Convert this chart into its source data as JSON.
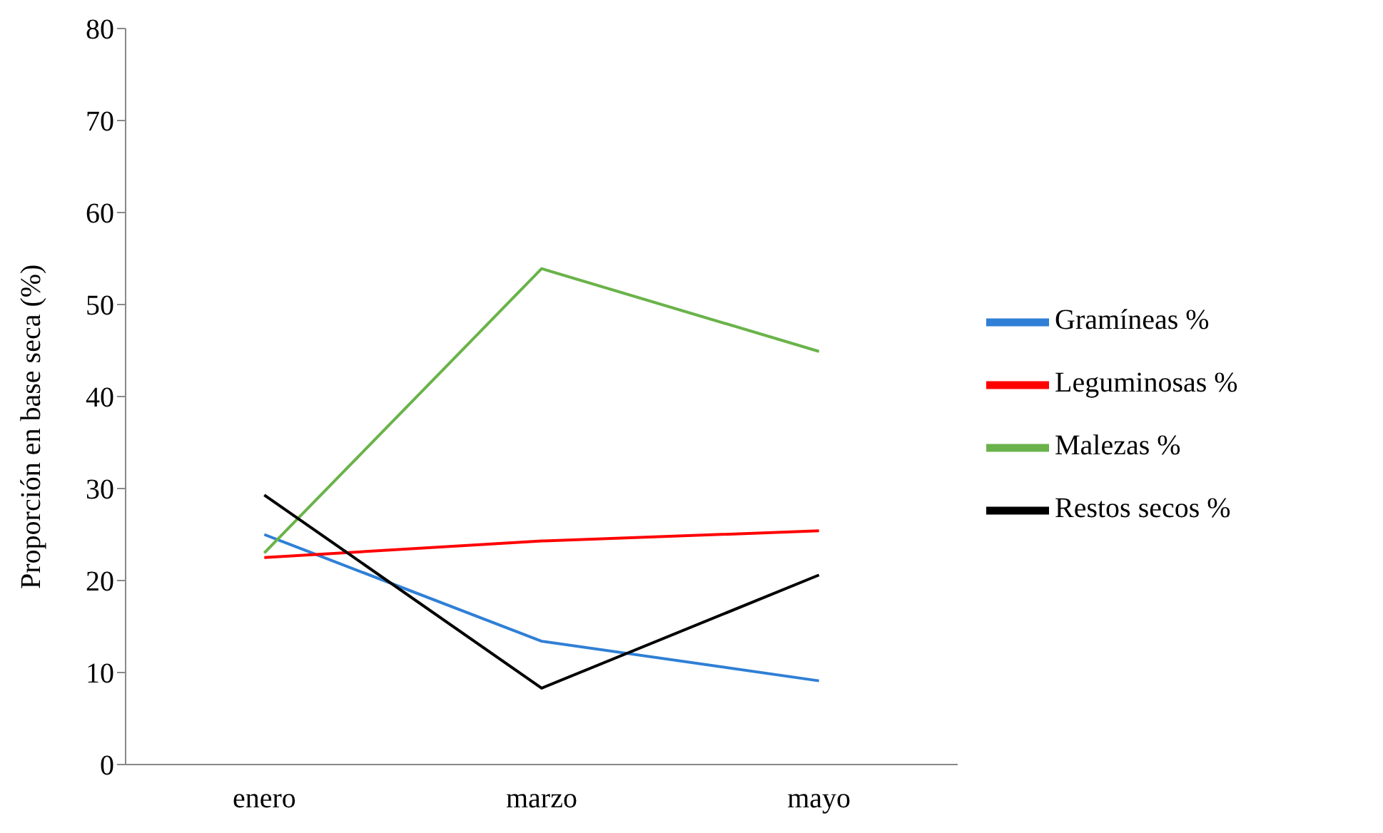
{
  "chart_data": {
    "type": "line",
    "ylabel": "Proporción en base seca (%)",
    "categories": [
      "enero",
      "marzo",
      "mayo"
    ],
    "series": [
      {
        "name": "Gramíneas %",
        "color": "#2f7fd6",
        "values": [
          25,
          13.4,
          9.1
        ]
      },
      {
        "name": "Leguminosas %",
        "color": "#ff0000",
        "values": [
          22.5,
          24.3,
          25.4
        ]
      },
      {
        "name": "Malezas %",
        "color": "#6ab34a",
        "values": [
          23,
          53.9,
          44.9
        ]
      },
      {
        "name": "Restos secos %",
        "color": "#000000",
        "values": [
          29.3,
          8.3,
          20.6
        ]
      }
    ],
    "ylim": [
      0,
      80
    ],
    "yticks": [
      0,
      10,
      20,
      30,
      40,
      50,
      60,
      70,
      80
    ],
    "grid": false,
    "legend": "right",
    "marker": "none",
    "line_style": "solid"
  }
}
